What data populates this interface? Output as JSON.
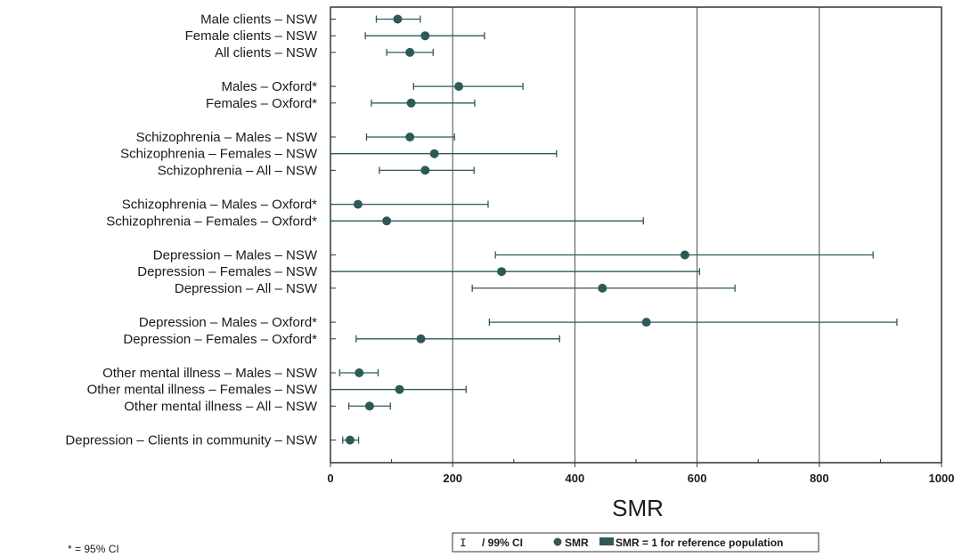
{
  "chart_data": {
    "type": "scatter",
    "orientation": "horizontal-forest-plot",
    "xlabel": "SMR",
    "xlim": [
      0,
      1000
    ],
    "xticks": [
      0,
      200,
      400,
      600,
      800,
      1000
    ],
    "grid": "vertical lines at 200, 400, 600, 800",
    "categories": [
      "Male clients – NSW",
      "Female clients – NSW",
      "All clients – NSW",
      "Males – Oxford*",
      "Females – Oxford*",
      "Schizophrenia – Males – NSW",
      "Schizophrenia – Females – NSW",
      "Schizophrenia – All – NSW",
      "Schizophrenia – Males – Oxford*",
      "Schizophrenia – Females – Oxford*",
      "Depression – Males – NSW",
      "Depression – Females – NSW",
      "Depression – All – NSW",
      "Depression – Males – Oxford*",
      "Depression – Females – Oxford*",
      "Other mental illness – Males – NSW",
      "Other mental illness – Females – NSW",
      "Other mental illness – All – NSW",
      "Depression – Clients in community – NSW"
    ],
    "groups": [
      3,
      2,
      3,
      2,
      3,
      2,
      3,
      1
    ],
    "series": [
      {
        "name": "SMR",
        "values": [
          110,
          155,
          130,
          210,
          132,
          130,
          170,
          155,
          45,
          92,
          580,
          280,
          445,
          517,
          148,
          47,
          113,
          64,
          32
        ]
      },
      {
        "name": "99% CI",
        "ci": [
          [
            75,
            147
          ],
          [
            57,
            252
          ],
          [
            92,
            168
          ],
          [
            136,
            315
          ],
          [
            67,
            236
          ],
          [
            59,
            203
          ],
          [
            0,
            370
          ],
          [
            80,
            235
          ],
          [
            0,
            258
          ],
          [
            0,
            512
          ],
          [
            270,
            888
          ],
          [
            0,
            604
          ],
          [
            232,
            662
          ],
          [
            260,
            927
          ],
          [
            42,
            375
          ],
          [
            15,
            78
          ],
          [
            0,
            222
          ],
          [
            30,
            98
          ],
          [
            20,
            46
          ]
        ]
      }
    ],
    "colors": {
      "marker": "#2d5a56",
      "line": "#2d5a56",
      "grid": "#4a4a4a",
      "frame": "#333333"
    }
  },
  "footnote": "* = 95% CI",
  "legend": {
    "ci_symbol": "I",
    "ci_label": "/ 99% CI",
    "smr_label": "SMR",
    "ref_label": "SMR = 1 for reference population"
  }
}
